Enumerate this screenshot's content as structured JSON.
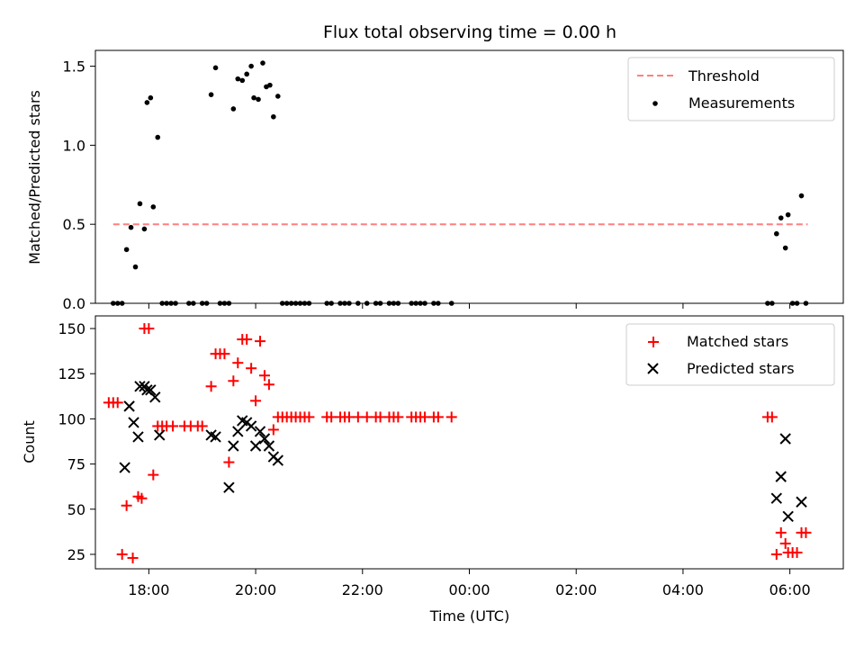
{
  "chart_data": [
    {
      "type": "scatter",
      "title": "Flux total observing time = 0.00 h",
      "xlabel": "",
      "ylabel": "Matched/Predicted stars",
      "xlim": [
        "17:00",
        "07:00"
      ],
      "ylim": [
        0,
        1.6
      ],
      "yticks": [
        "0.0",
        "0.5",
        "1.0",
        "1.5"
      ],
      "threshold": {
        "name": "Threshold",
        "value": 0.5,
        "x_range": [
          "17:20",
          "06:20"
        ],
        "color": "#ff7f7f",
        "dash": "dashed"
      },
      "series": [
        {
          "name": "Measurements",
          "color": "#000000",
          "marker": "dot",
          "points": [
            [
              "17:20",
              0
            ],
            [
              "17:25",
              0
            ],
            [
              "17:30",
              0
            ],
            [
              "17:35",
              0.34
            ],
            [
              "17:40",
              0.48
            ],
            [
              "17:45",
              0.23
            ],
            [
              "17:50",
              0.63
            ],
            [
              "17:55",
              0.47
            ],
            [
              "17:58",
              1.27
            ],
            [
              "18:02",
              1.3
            ],
            [
              "18:05",
              0.61
            ],
            [
              "18:10",
              1.05
            ],
            [
              "18:15",
              0
            ],
            [
              "18:20",
              0
            ],
            [
              "18:25",
              0
            ],
            [
              "18:30",
              0
            ],
            [
              "18:45",
              0
            ],
            [
              "18:50",
              0
            ],
            [
              "19:00",
              0
            ],
            [
              "19:05",
              0
            ],
            [
              "19:10",
              1.32
            ],
            [
              "19:15",
              1.49
            ],
            [
              "19:20",
              0
            ],
            [
              "19:25",
              0
            ],
            [
              "19:30",
              0
            ],
            [
              "19:35",
              1.23
            ],
            [
              "19:40",
              1.42
            ],
            [
              "19:45",
              1.41
            ],
            [
              "19:50",
              1.45
            ],
            [
              "19:55",
              1.5
            ],
            [
              "19:58",
              1.3
            ],
            [
              "20:03",
              1.29
            ],
            [
              "20:08",
              1.52
            ],
            [
              "20:12",
              1.37
            ],
            [
              "20:16",
              1.38
            ],
            [
              "20:20",
              1.18
            ],
            [
              "20:25",
              1.31
            ],
            [
              "20:30",
              0
            ],
            [
              "20:35",
              0
            ],
            [
              "20:40",
              0
            ],
            [
              "20:45",
              0
            ],
            [
              "20:50",
              0
            ],
            [
              "20:55",
              0
            ],
            [
              "21:00",
              0
            ],
            [
              "21:20",
              0
            ],
            [
              "21:25",
              0
            ],
            [
              "21:35",
              0
            ],
            [
              "21:40",
              0
            ],
            [
              "21:45",
              0
            ],
            [
              "21:55",
              0
            ],
            [
              "22:05",
              0
            ],
            [
              "22:15",
              0
            ],
            [
              "22:20",
              0
            ],
            [
              "22:30",
              0
            ],
            [
              "22:35",
              0
            ],
            [
              "22:40",
              0
            ],
            [
              "22:55",
              0
            ],
            [
              "23:00",
              0
            ],
            [
              "23:05",
              0
            ],
            [
              "23:10",
              0
            ],
            [
              "23:20",
              0
            ],
            [
              "23:25",
              0
            ],
            [
              "23:40",
              0
            ],
            [
              "05:35",
              0
            ],
            [
              "05:40",
              0
            ],
            [
              "05:45",
              0.44
            ],
            [
              "05:50",
              0.54
            ],
            [
              "05:55",
              0.35
            ],
            [
              "05:58",
              0.56
            ],
            [
              "06:03",
              0
            ],
            [
              "06:08",
              0
            ],
            [
              "06:13",
              0.68
            ],
            [
              "06:18",
              0
            ]
          ]
        }
      ],
      "legend_position": "top-right"
    },
    {
      "type": "scatter",
      "title": "",
      "xlabel": "Time (UTC)",
      "ylabel": "Count",
      "xlim": [
        "17:00",
        "07:00"
      ],
      "ylim": [
        17,
        157
      ],
      "xticks": [
        "18:00",
        "20:00",
        "22:00",
        "00:00",
        "02:00",
        "04:00",
        "06:00"
      ],
      "yticks": [
        "25",
        "50",
        "75",
        "100",
        "125",
        "150"
      ],
      "series": [
        {
          "name": "Matched stars",
          "color": "#ff0000",
          "marker": "plus",
          "points": [
            [
              "17:15",
              109
            ],
            [
              "17:20",
              109
            ],
            [
              "17:25",
              109
            ],
            [
              "17:30",
              25
            ],
            [
              "17:35",
              52
            ],
            [
              "17:42",
              23
            ],
            [
              "17:48",
              57
            ],
            [
              "17:52",
              56
            ],
            [
              "17:55",
              150
            ],
            [
              "18:00",
              150
            ],
            [
              "18:05",
              69
            ],
            [
              "18:10",
              96
            ],
            [
              "18:15",
              96
            ],
            [
              "18:20",
              96
            ],
            [
              "18:27",
              96
            ],
            [
              "18:40",
              96
            ],
            [
              "18:47",
              96
            ],
            [
              "18:55",
              96
            ],
            [
              "19:00",
              96
            ],
            [
              "19:10",
              118
            ],
            [
              "19:15",
              136
            ],
            [
              "19:20",
              136
            ],
            [
              "19:25",
              136
            ],
            [
              "19:30",
              76
            ],
            [
              "19:35",
              121
            ],
            [
              "19:40",
              131
            ],
            [
              "19:45",
              144
            ],
            [
              "19:50",
              144
            ],
            [
              "19:55",
              128
            ],
            [
              "20:00",
              110
            ],
            [
              "20:05",
              143
            ],
            [
              "20:10",
              124
            ],
            [
              "20:15",
              119
            ],
            [
              "20:20",
              94
            ],
            [
              "20:25",
              101
            ],
            [
              "20:30",
              101
            ],
            [
              "20:35",
              101
            ],
            [
              "20:40",
              101
            ],
            [
              "20:45",
              101
            ],
            [
              "20:50",
              101
            ],
            [
              "20:55",
              101
            ],
            [
              "21:00",
              101
            ],
            [
              "21:20",
              101
            ],
            [
              "21:25",
              101
            ],
            [
              "21:35",
              101
            ],
            [
              "21:40",
              101
            ],
            [
              "21:45",
              101
            ],
            [
              "21:55",
              101
            ],
            [
              "22:05",
              101
            ],
            [
              "22:15",
              101
            ],
            [
              "22:20",
              101
            ],
            [
              "22:30",
              101
            ],
            [
              "22:35",
              101
            ],
            [
              "22:40",
              101
            ],
            [
              "22:55",
              101
            ],
            [
              "23:00",
              101
            ],
            [
              "23:05",
              101
            ],
            [
              "23:10",
              101
            ],
            [
              "23:20",
              101
            ],
            [
              "23:25",
              101
            ],
            [
              "23:40",
              101
            ],
            [
              "05:35",
              101
            ],
            [
              "05:40",
              101
            ],
            [
              "05:45",
              25
            ],
            [
              "05:50",
              37
            ],
            [
              "05:55",
              31
            ],
            [
              "05:58",
              26
            ],
            [
              "06:03",
              26
            ],
            [
              "06:08",
              26
            ],
            [
              "06:13",
              37
            ],
            [
              "06:18",
              37
            ]
          ]
        },
        {
          "name": "Predicted stars",
          "color": "#000000",
          "marker": "x",
          "points": [
            [
              "17:33",
              73
            ],
            [
              "17:38",
              107
            ],
            [
              "17:43",
              98
            ],
            [
              "17:48",
              90
            ],
            [
              "17:50",
              118
            ],
            [
              "17:55",
              118
            ],
            [
              "17:58",
              116
            ],
            [
              "18:02",
              116
            ],
            [
              "18:07",
              112
            ],
            [
              "18:12",
              91
            ],
            [
              "19:10",
              91
            ],
            [
              "19:15",
              90
            ],
            [
              "19:30",
              62
            ],
            [
              "19:35",
              85
            ],
            [
              "19:40",
              93
            ],
            [
              "19:45",
              99
            ],
            [
              "19:50",
              98
            ],
            [
              "19:55",
              96
            ],
            [
              "20:00",
              85
            ],
            [
              "20:05",
              93
            ],
            [
              "20:10",
              89
            ],
            [
              "20:15",
              85
            ],
            [
              "20:20",
              79
            ],
            [
              "20:25",
              77
            ],
            [
              "05:45",
              56
            ],
            [
              "05:50",
              68
            ],
            [
              "05:55",
              89
            ],
            [
              "05:58",
              46
            ],
            [
              "06:13",
              54
            ]
          ]
        }
      ],
      "legend_position": "top-right"
    }
  ]
}
